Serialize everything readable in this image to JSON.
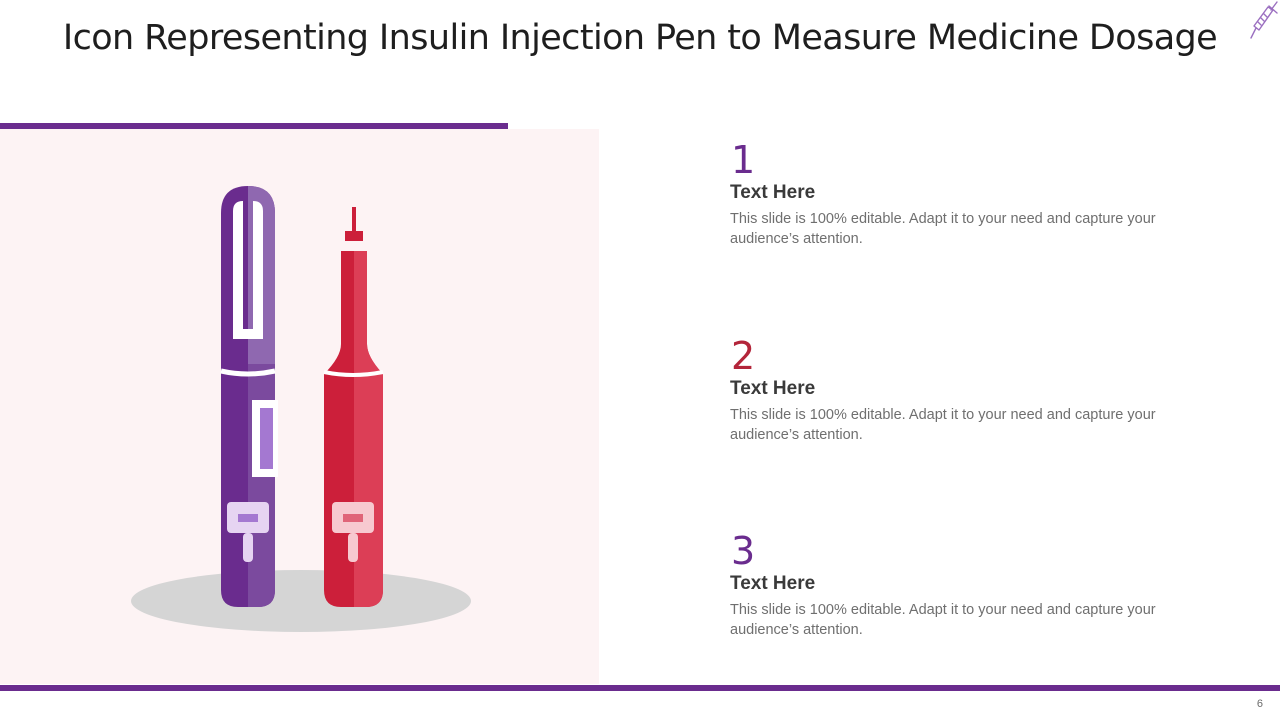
{
  "slide": {
    "title": "Icon Representing Insulin Injection Pen to Measure Medicine Dosage",
    "page_number": "6"
  },
  "colors": {
    "accent_purple": "#6a2c8e",
    "accent_red": "#b3253a",
    "panel_background": "#fdf3f4"
  },
  "illustration": {
    "icon": "insulin-pens-icon",
    "pens": [
      "purple-insulin-pen",
      "red-insulin-pen"
    ]
  },
  "items": [
    {
      "number": "1",
      "heading": "Text Here",
      "body": "This slide is 100% editable. Adapt it to your need and capture your audience’s attention.",
      "number_color": "#6a2c8e"
    },
    {
      "number": "2",
      "heading": "Text Here",
      "body": "This slide is 100% editable. Adapt it to your need and capture your audience’s attention.",
      "number_color": "#b3253a"
    },
    {
      "number": "3",
      "heading": "Text Here",
      "body": "This slide is 100% editable. Adapt it to your need and capture your audience’s attention.",
      "number_color": "#6a2c8e"
    }
  ]
}
